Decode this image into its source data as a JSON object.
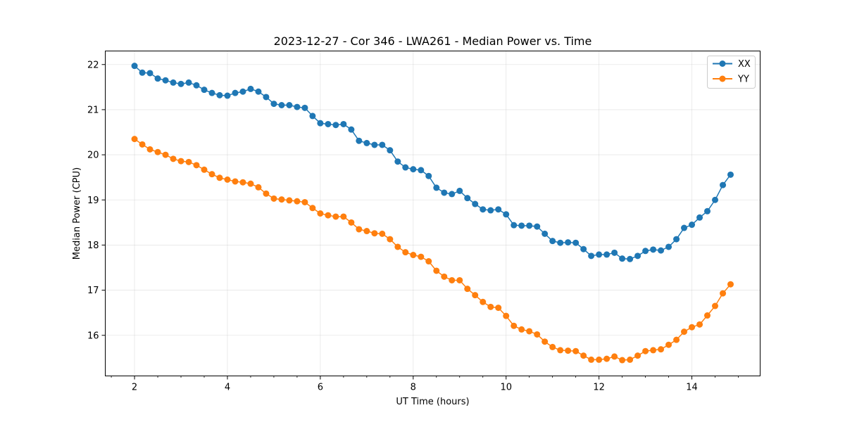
{
  "chart_data": {
    "type": "line",
    "title": "2023-12-27 - Cor 346 - LWA261 - Median Power vs. Time",
    "xlabel": "UT Time (hours)",
    "ylabel": "Median Power (CPU)",
    "xlim": [
      1.37,
      15.47
    ],
    "ylim": [
      15.1,
      22.3
    ],
    "xticks": [
      2,
      4,
      6,
      8,
      10,
      12,
      14
    ],
    "xtick_labels": [
      "2",
      "4",
      "6",
      "8",
      "10",
      "12",
      "14"
    ],
    "yticks": [
      16,
      17,
      18,
      19,
      20,
      21,
      22
    ],
    "ytick_labels": [
      "16",
      "17",
      "18",
      "19",
      "20",
      "21",
      "22"
    ],
    "grid": true,
    "legend_position": "top-right",
    "series": [
      {
        "name": "XX",
        "color": "#1f77b4",
        "x": [
          2.0,
          2.167,
          2.333,
          2.5,
          2.667,
          2.833,
          3.0,
          3.167,
          3.333,
          3.5,
          3.667,
          3.833,
          4.0,
          4.167,
          4.333,
          4.5,
          4.667,
          4.833,
          5.0,
          5.167,
          5.333,
          5.5,
          5.667,
          5.833,
          6.0,
          6.167,
          6.333,
          6.5,
          6.667,
          6.833,
          7.0,
          7.167,
          7.333,
          7.5,
          7.667,
          7.833,
          8.0,
          8.167,
          8.333,
          8.5,
          8.667,
          8.833,
          9.0,
          9.167,
          9.333,
          9.5,
          9.667,
          9.833,
          10.0,
          10.167,
          10.333,
          10.5,
          10.667,
          10.833,
          11.0,
          11.167,
          11.333,
          11.5,
          11.667,
          11.833,
          12.0,
          12.167,
          12.333,
          12.5,
          12.667,
          12.833,
          13.0,
          13.167,
          13.333,
          13.5,
          13.667,
          13.833,
          14.0,
          14.167,
          14.333,
          14.5,
          14.667,
          14.833
        ],
        "y": [
          21.97,
          21.82,
          21.81,
          21.69,
          21.65,
          21.6,
          21.57,
          21.6,
          21.54,
          21.44,
          21.37,
          21.32,
          21.31,
          21.37,
          21.4,
          21.46,
          21.4,
          21.28,
          21.13,
          21.1,
          21.1,
          21.06,
          21.04,
          20.86,
          20.7,
          20.68,
          20.66,
          20.68,
          20.56,
          20.31,
          20.26,
          20.22,
          20.22,
          20.1,
          19.85,
          19.72,
          19.68,
          19.66,
          19.53,
          19.27,
          19.16,
          19.13,
          19.2,
          19.04,
          18.91,
          18.79,
          18.77,
          18.79,
          18.68,
          18.44,
          18.43,
          18.43,
          18.41,
          18.25,
          18.09,
          18.05,
          18.06,
          18.05,
          17.91,
          17.76,
          17.79,
          17.79,
          17.83,
          17.7,
          17.69,
          17.76,
          17.87,
          17.9,
          17.88,
          17.96,
          18.13,
          18.38,
          18.45,
          18.61,
          18.75,
          19.0,
          19.33,
          19.56
        ]
      },
      {
        "name": "YY",
        "color": "#ff7f0e",
        "x": [
          2.0,
          2.167,
          2.333,
          2.5,
          2.667,
          2.833,
          3.0,
          3.167,
          3.333,
          3.5,
          3.667,
          3.833,
          4.0,
          4.167,
          4.333,
          4.5,
          4.667,
          4.833,
          5.0,
          5.167,
          5.333,
          5.5,
          5.667,
          5.833,
          6.0,
          6.167,
          6.333,
          6.5,
          6.667,
          6.833,
          7.0,
          7.167,
          7.333,
          7.5,
          7.667,
          7.833,
          8.0,
          8.167,
          8.333,
          8.5,
          8.667,
          8.833,
          9.0,
          9.167,
          9.333,
          9.5,
          9.667,
          9.833,
          10.0,
          10.167,
          10.333,
          10.5,
          10.667,
          10.833,
          11.0,
          11.167,
          11.333,
          11.5,
          11.667,
          11.833,
          12.0,
          12.167,
          12.333,
          12.5,
          12.667,
          12.833,
          13.0,
          13.167,
          13.333,
          13.5,
          13.667,
          13.833,
          14.0,
          14.167,
          14.333,
          14.5,
          14.667,
          14.833
        ],
        "y": [
          20.35,
          20.23,
          20.12,
          20.06,
          20.0,
          19.91,
          19.86,
          19.84,
          19.77,
          19.67,
          19.57,
          19.49,
          19.45,
          19.41,
          19.39,
          19.36,
          19.28,
          19.14,
          19.03,
          19.01,
          18.99,
          18.97,
          18.95,
          18.82,
          18.7,
          18.66,
          18.63,
          18.63,
          18.5,
          18.35,
          18.31,
          18.26,
          18.25,
          18.13,
          17.96,
          17.84,
          17.78,
          17.74,
          17.64,
          17.43,
          17.3,
          17.22,
          17.22,
          17.03,
          16.89,
          16.74,
          16.63,
          16.61,
          16.43,
          16.21,
          16.13,
          16.09,
          16.02,
          15.86,
          15.74,
          15.67,
          15.66,
          15.65,
          15.55,
          15.46,
          15.46,
          15.48,
          15.53,
          15.45,
          15.46,
          15.55,
          15.65,
          15.67,
          15.69,
          15.79,
          15.9,
          16.08,
          16.18,
          16.24,
          16.44,
          16.65,
          16.93,
          17.13
        ]
      }
    ]
  }
}
